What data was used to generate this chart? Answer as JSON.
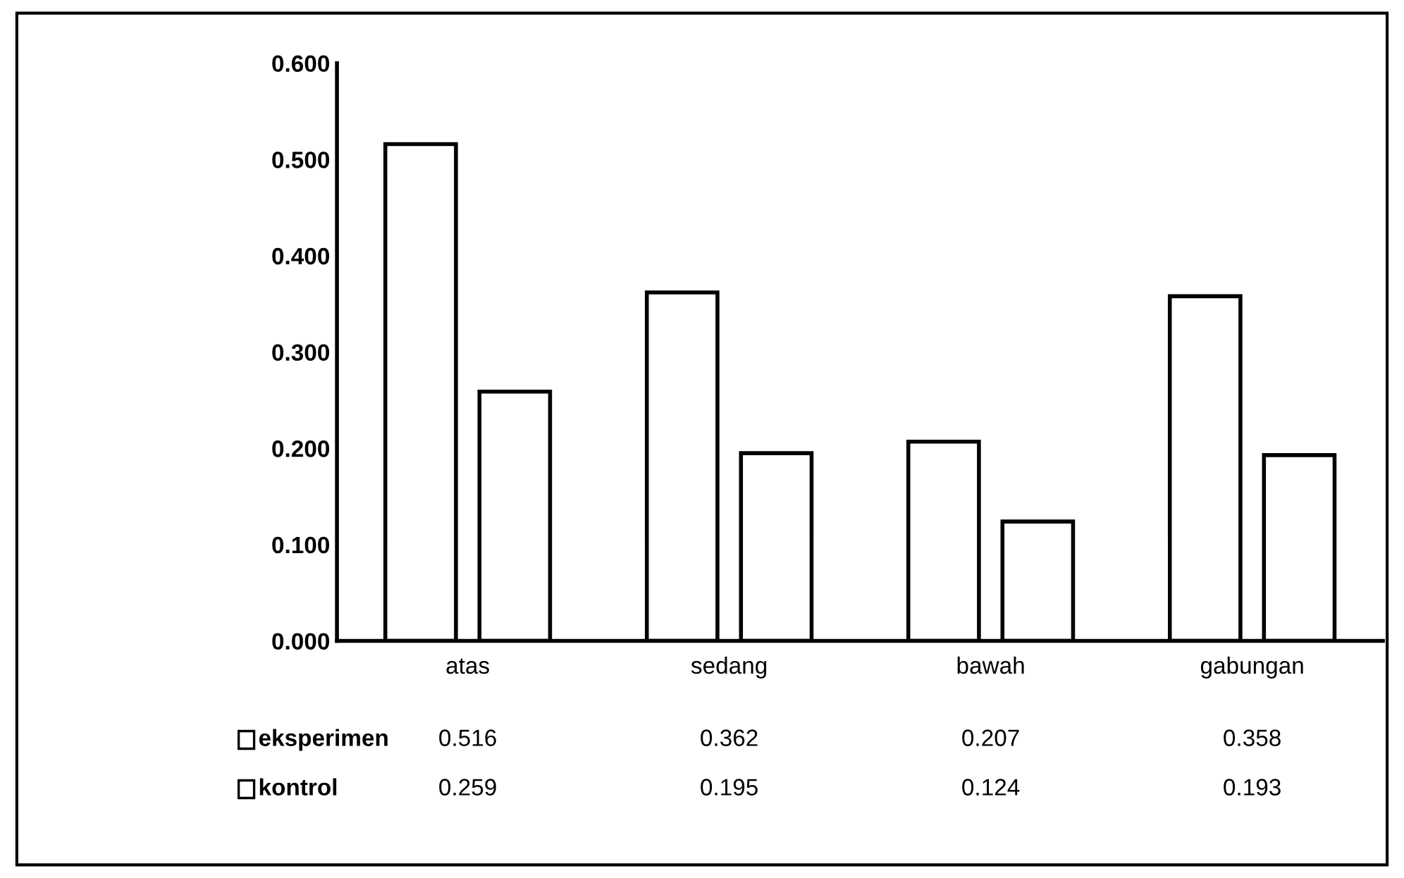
{
  "chart_data": {
    "type": "bar",
    "categories": [
      "atas",
      "sedang",
      "bawah",
      "gabungan"
    ],
    "series": [
      {
        "name": "eksperimen",
        "color": "#ffffff",
        "values": [
          0.516,
          0.362,
          0.207,
          0.358
        ]
      },
      {
        "name": "kontrol",
        "color": "#ffffff",
        "values": [
          0.259,
          0.195,
          0.124,
          0.193
        ]
      }
    ],
    "ylim": [
      0,
      0.6
    ],
    "yticks": [
      {
        "value": 0,
        "label": "0.000"
      },
      {
        "value": 0.1,
        "label": "0.100"
      },
      {
        "value": 0.2,
        "label": "0.200"
      },
      {
        "value": 0.3,
        "label": "0.300"
      },
      {
        "value": 0.4,
        "label": "0.400"
      },
      {
        "value": 0.5,
        "label": "0.500"
      },
      {
        "value": 0.6,
        "label": "0.600"
      }
    ],
    "grid": false,
    "legend": "bottom left",
    "data_labels": true
  }
}
